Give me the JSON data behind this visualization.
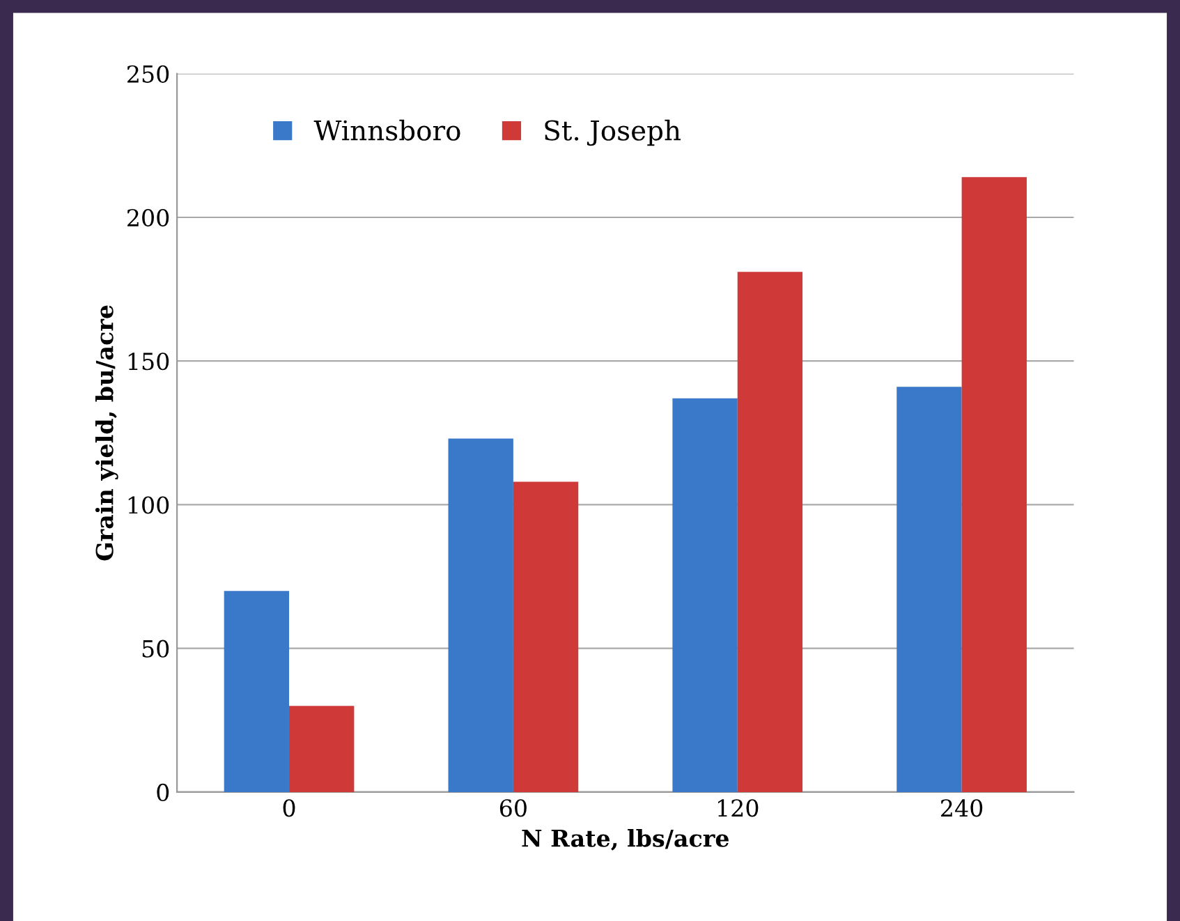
{
  "chart_data": {
    "type": "bar",
    "xlabel": "N Rate, lbs/acre",
    "ylabel": "Grain yield, bu/acre",
    "categories": [
      "0",
      "60",
      "120",
      "240"
    ],
    "series": [
      {
        "name": "Winnsboro",
        "color": "#3a78c9",
        "values": [
          70,
          123,
          137,
          141
        ]
      },
      {
        "name": "St. Joseph",
        "color": "#cf3a38",
        "values": [
          30,
          108,
          181,
          214
        ]
      }
    ],
    "ylim": [
      0,
      250
    ],
    "yticks": [
      0,
      50,
      100,
      150,
      200,
      250
    ],
    "grid": "y",
    "legend": "top left"
  }
}
